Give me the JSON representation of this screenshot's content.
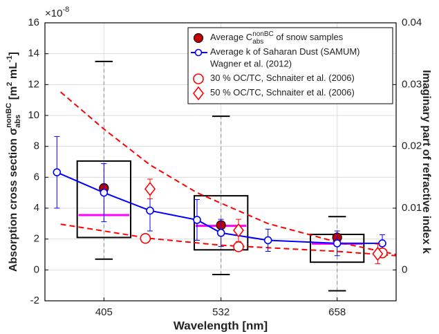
{
  "chart_data": {
    "type": "box",
    "xlabel": "Wavelength [nm]",
    "ylabel": {
      "text": "Absorption cross section σ",
      "sup": "nonBC",
      "sub": "abs",
      "unit": " [m",
      "unit_sup1": "2",
      "unit2": " mL",
      "unit_sup2": "-1",
      "unit3": "]"
    },
    "y2label": "Imaginary part of refractive index k",
    "y_multiplier": "×10",
    "y_multiplier_exp": "-8",
    "xlim": [
      341,
      722
    ],
    "xticks": [
      405,
      532,
      658
    ],
    "ylim": [
      -2,
      16
    ],
    "yticks": [
      -2,
      0,
      2,
      4,
      6,
      8,
      10,
      12,
      14,
      16
    ],
    "y2lim": [
      -0.005,
      0.04
    ],
    "y2ticks": [
      0,
      0.01,
      0.02,
      0.03,
      0.04
    ],
    "grid": true,
    "legend": "upper right",
    "boxes": {
      "x": [
        405,
        532,
        658
      ],
      "whislo": [
        0.7,
        -0.3,
        -1.35
      ],
      "q1": [
        2.1,
        1.3,
        0.5
      ],
      "med": [
        3.55,
        2.85,
        1.7
      ],
      "q3": [
        7.05,
        4.8,
        2.3
      ],
      "whishi": [
        13.5,
        9.95,
        3.45
      ],
      "color": "#000000",
      "median_color": "#ff00ff"
    },
    "series": [
      {
        "name": "Average C",
        "name_sup": "nonBC",
        "name_sub": "abs",
        "name_rest": " of snow samples",
        "type": "scatter",
        "marker": "filled-circle",
        "color": "#c00000",
        "axis": "y",
        "x": [
          405,
          532,
          658
        ],
        "values": [
          5.3,
          2.9,
          2.1
        ]
      },
      {
        "name": "Average k of Saharan Dust (SAMUM)",
        "name_line2": "Wagner et al. (2012)",
        "type": "line",
        "marker": "circle",
        "color": "#0000ff",
        "axis": "y2",
        "x": [
          354,
          405,
          455,
          506,
          532,
          583,
          658,
          707
        ],
        "values": [
          0.0158,
          0.0125,
          0.0096,
          0.0081,
          0.006,
          0.0048,
          0.0043,
          0.0043
        ],
        "errors": [
          0.0058,
          0.0047,
          0.0033,
          0.0033,
          0.0022,
          0.0018,
          0.002,
          0.0014
        ]
      },
      {
        "name": "30 % OC/TC, Schnaiter et al. (2006)",
        "type": "scatter",
        "marker": "circle",
        "color": "#ff0000",
        "axis": "y2",
        "x": [
          450,
          551,
          707
        ],
        "values": [
          0.0051,
          0.00375,
          0.00275
        ]
      },
      {
        "name": "50 % OC/TC, Schnaiter et al. (2006)",
        "type": "scatter",
        "marker": "diamond",
        "color": "#ff0000",
        "axis": "y2",
        "x": [
          455,
          551,
          702
        ],
        "values": [
          0.0131,
          0.0064,
          0.0026
        ],
        "errors": [
          0.0016,
          0.0018,
          0.0016
        ]
      },
      {
        "type": "line",
        "dashed": true,
        "color": "#ff0000",
        "axis": "y2",
        "x": [
          358,
          405,
          455,
          506,
          532,
          583,
          658,
          722
        ],
        "values": [
          0.0288,
          0.0228,
          0.017,
          0.0125,
          0.0108,
          0.0075,
          0.0045,
          0.0025
        ]
      },
      {
        "type": "line",
        "dashed": true,
        "color": "#ff0000",
        "axis": "y2",
        "x": [
          358,
          405,
          455,
          532,
          658,
          722
        ],
        "values": [
          0.0074,
          0.0063,
          0.0051,
          0.004,
          0.003,
          0.0023
        ]
      }
    ]
  }
}
